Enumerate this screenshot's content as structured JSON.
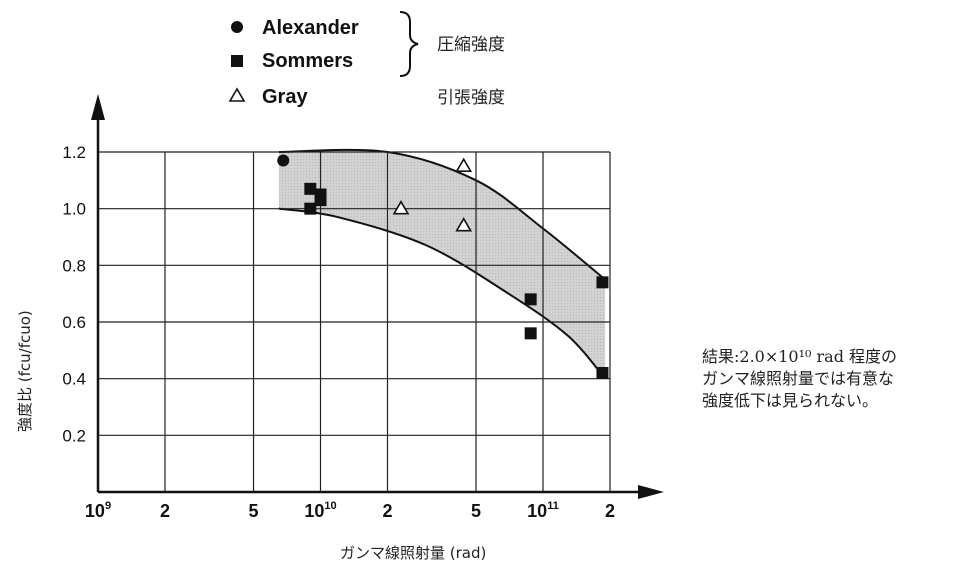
{
  "chart_data": {
    "type": "scatter",
    "xlabel": "ガンマ線照射量 (rad)",
    "ylabel": "強度比 (fcu/fcuo)",
    "x_scale": "log",
    "xlim": [
      1000000000.0,
      200000000000.0
    ],
    "ylim": [
      0,
      1.2
    ],
    "grid": true,
    "x_ticks": [
      {
        "value": 1000000000.0,
        "base": "10",
        "exp": "9"
      },
      {
        "value": 2000000000.0,
        "base": "2",
        "exp": ""
      },
      {
        "value": 5000000000.0,
        "base": "5",
        "exp": ""
      },
      {
        "value": 10000000000.0,
        "base": "10",
        "exp": "10"
      },
      {
        "value": 20000000000.0,
        "base": "2",
        "exp": ""
      },
      {
        "value": 50000000000.0,
        "base": "5",
        "exp": ""
      },
      {
        "value": 100000000000.0,
        "base": "10",
        "exp": "11"
      },
      {
        "value": 200000000000.0,
        "base": "2",
        "exp": ""
      }
    ],
    "y_ticks": [
      "0.2",
      "0.4",
      "0.6",
      "0.8",
      "1.0",
      "1.2"
    ],
    "series": [
      {
        "name": "Alexander",
        "marker": "circle",
        "group": "compression",
        "points": [
          [
            6800000000.0,
            1.17
          ]
        ]
      },
      {
        "name": "Sommers",
        "marker": "square",
        "group": "compression",
        "points": [
          [
            9000000000.0,
            1.07
          ],
          [
            9000000000.0,
            1.0
          ],
          [
            10000000000.0,
            1.05
          ],
          [
            10000000000.0,
            1.03
          ],
          [
            88000000000.0,
            0.68
          ],
          [
            88000000000.0,
            0.56
          ],
          [
            185000000000.0,
            0.74
          ],
          [
            185000000000.0,
            0.42
          ]
        ]
      },
      {
        "name": "Gray",
        "marker": "triangle-open",
        "group": "tension",
        "points": [
          [
            23000000000.0,
            1.0
          ],
          [
            44000000000.0,
            1.15
          ],
          [
            44000000000.0,
            0.94
          ]
        ]
      }
    ],
    "band": {
      "upper": [
        [
          6500000000.0,
          1.2
        ],
        [
          20000000000.0,
          1.2
        ],
        [
          50000000000.0,
          1.1
        ],
        [
          100000000000.0,
          0.93
        ],
        [
          190000000000.0,
          0.75
        ]
      ],
      "lower": [
        [
          6500000000.0,
          1.0
        ],
        [
          12000000000.0,
          0.97
        ],
        [
          30000000000.0,
          0.87
        ],
        [
          70000000000.0,
          0.7
        ],
        [
          130000000000.0,
          0.55
        ],
        [
          190000000000.0,
          0.4
        ]
      ]
    }
  },
  "legend": {
    "items": [
      {
        "label": "Alexander",
        "marker": "circle"
      },
      {
        "label": "Sommers",
        "marker": "square"
      },
      {
        "label": "Gray",
        "marker": "triangle-open"
      }
    ],
    "compression_label": "圧縮強度",
    "tension_label": "引張強度"
  },
  "note": {
    "lines": [
      "結果:2.0×10¹⁰ rad 程度の",
      "ガンマ線照射量では有意な",
      "強度低下は見られない。"
    ]
  }
}
